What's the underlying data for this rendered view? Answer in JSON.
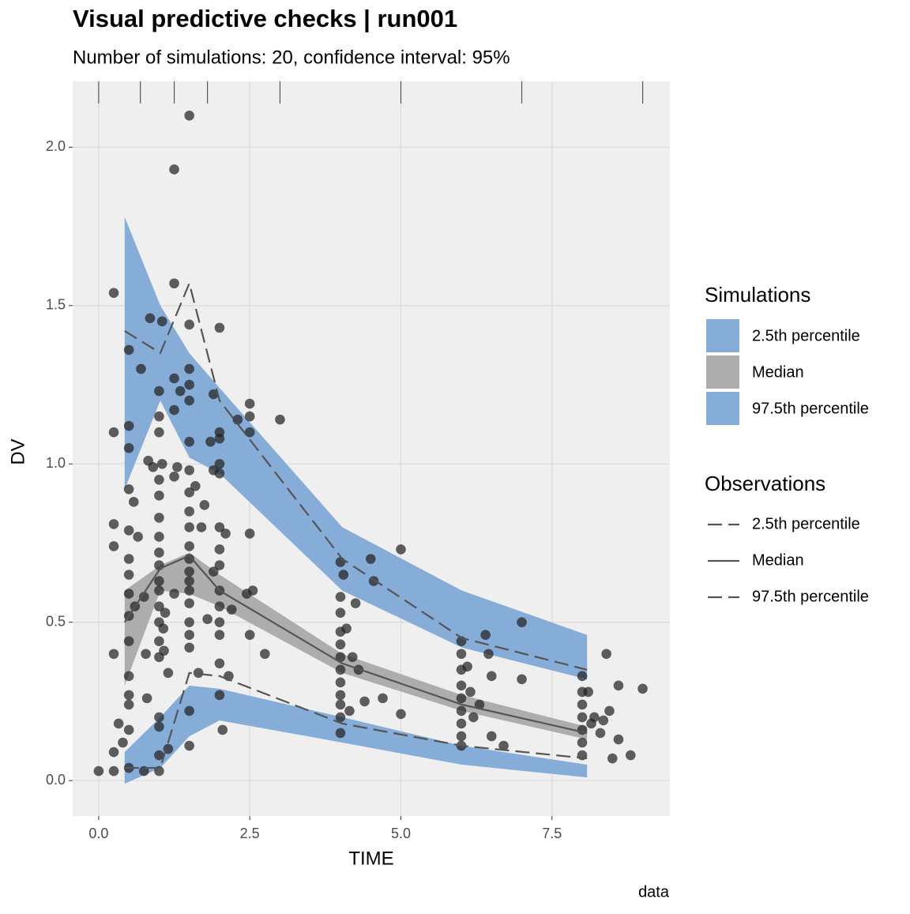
{
  "chart_data": {
    "type": "vpc",
    "title": "Visual predictive checks | run001",
    "subtitle": "Number of simulations: 20, confidence interval: 95%",
    "x_label": "TIME",
    "y_label": "DV",
    "caption": "data",
    "xlim": [
      -0.43,
      9.45
    ],
    "ylim": [
      -0.112,
      2.208
    ],
    "xticks": [
      {
        "value": 0,
        "label": "0.0"
      },
      2.5,
      {
        "value": 5,
        "label": "5.0"
      },
      7.5
    ],
    "yticks": [
      {
        "value": 0,
        "label": "0.0"
      },
      0.5,
      {
        "value": 1,
        "label": "1.0"
      },
      1.5,
      {
        "value": 2,
        "label": "2.0"
      }
    ],
    "grid": true,
    "bin_edges": [
      0,
      0.69,
      1.25,
      1.8,
      3.0,
      5.0,
      7.0,
      9.0
    ],
    "bin_mid": [
      0.43,
      1.02,
      1.5,
      2.0,
      4.03,
      6.01,
      8.08
    ],
    "simulations_title": "Simulations",
    "simulations": [
      {
        "name": "2.5th percentile",
        "color": "#86acd8",
        "lower": [
          -0.01,
          0.04,
          0.14,
          0.19,
          0.12,
          0.05,
          0.01
        ],
        "upper": [
          0.09,
          0.2,
          0.3,
          0.29,
          0.2,
          0.11,
          0.05
        ]
      },
      {
        "name": "Median",
        "color": "#adadad",
        "lower": [
          0.3,
          0.6,
          0.59,
          0.55,
          0.34,
          0.22,
          0.13
        ],
        "upper": [
          0.6,
          0.68,
          0.72,
          0.65,
          0.4,
          0.27,
          0.17
        ]
      },
      {
        "name": "97.5th percentile",
        "color": "#86acd8",
        "lower": [
          0.92,
          1.2,
          1.02,
          0.97,
          0.6,
          0.42,
          0.32
        ],
        "upper": [
          1.78,
          1.5,
          1.35,
          1.24,
          0.8,
          0.6,
          0.46
        ]
      }
    ],
    "observations_title": "Observations",
    "observations": [
      {
        "name": "2.5th percentile",
        "dash": true,
        "values": [
          0.04,
          0.04,
          0.34,
          0.33,
          0.18,
          0.11,
          0.07
        ]
      },
      {
        "name": "Median",
        "dash": false,
        "values": [
          0.5,
          0.67,
          0.71,
          0.6,
          0.37,
          0.24,
          0.15
        ]
      },
      {
        "name": "97.5th percentile",
        "dash": true,
        "values": [
          1.42,
          1.35,
          1.57,
          1.2,
          0.7,
          0.45,
          0.35
        ]
      }
    ],
    "line_color": "#555555",
    "point_color": "#222222",
    "points": {
      "x": [
        0,
        0.25,
        0.25,
        0.25,
        0.25,
        0.25,
        0.25,
        0.25,
        0.33,
        0.4,
        0.5,
        0.5,
        0.5,
        0.5,
        0.5,
        0.5,
        0.5,
        0.5,
        0.5,
        0.5,
        0.5,
        0.5,
        0.5,
        0.5,
        0.5,
        0.58,
        0.6,
        0.65,
        0.7,
        0.75,
        0.78,
        0.8,
        0.82,
        0.85,
        0.9,
        0.75,
        1,
        1,
        1,
        1,
        1,
        1,
        1,
        1,
        1,
        1,
        1,
        1,
        1,
        1,
        1,
        1,
        1,
        1,
        1,
        1.05,
        1.05,
        1.07,
        1.08,
        1.1,
        1.15,
        1.15,
        1.25,
        1.25,
        1.25,
        1.25,
        1.25,
        1.25,
        1.3,
        1.35,
        1.5,
        1.5,
        1.5,
        1.5,
        1.5,
        1.5,
        1.5,
        1.5,
        1.5,
        1.5,
        1.5,
        1.5,
        1.5,
        1.5,
        1.5,
        1.5,
        1.5,
        1.5,
        1.5,
        1.5,
        1.5,
        1.6,
        1.65,
        1.7,
        1.75,
        1.8,
        1.85,
        1.9,
        1.9,
        1.9,
        2,
        2,
        2,
        2,
        2,
        2,
        2,
        2,
        2,
        2,
        2,
        2,
        2,
        2,
        2.05,
        2.1,
        2.15,
        2.2,
        2.3,
        2.45,
        2.5,
        2.5,
        2.5,
        2.5,
        2.5,
        2.55,
        2.75,
        3.0,
        4,
        4,
        4,
        4,
        4,
        4,
        4,
        4,
        4,
        4,
        4,
        4,
        4.05,
        4.1,
        4.15,
        4.2,
        4.25,
        4.3,
        4.4,
        4.5,
        4.55,
        4.7,
        5.0,
        5.0,
        6,
        6,
        6,
        6,
        6,
        6,
        6,
        6,
        6,
        6.1,
        6.15,
        6.2,
        6.3,
        6.4,
        6.45,
        6.5,
        6.5,
        6.7,
        7.0,
        7.0,
        8,
        8,
        8,
        8,
        8,
        8,
        8,
        8.1,
        8.15,
        8.2,
        8.3,
        8.35,
        8.4,
        8.45,
        8.5,
        8.6,
        8.6,
        8.8,
        9.0
      ],
      "y": [
        0.03,
        1.54,
        1.1,
        0.81,
        0.74,
        0.4,
        0.09,
        0.03,
        0.18,
        0.12,
        1.36,
        1.12,
        1.05,
        0.92,
        0.79,
        0.7,
        0.65,
        0.59,
        0.52,
        0.44,
        0.33,
        0.27,
        0.24,
        0.16,
        0.04,
        0.88,
        0.55,
        0.77,
        1.3,
        0.58,
        0.4,
        0.26,
        1.01,
        1.46,
        0.99,
        0.03,
        1.23,
        1.15,
        1.1,
        0.95,
        0.9,
        0.83,
        0.77,
        0.72,
        0.68,
        0.63,
        0.6,
        0.55,
        0.5,
        0.44,
        0.39,
        0.2,
        0.17,
        0.08,
        0.03,
        1.45,
        1.0,
        0.48,
        0.41,
        0.53,
        0.34,
        0.1,
        1.93,
        1.57,
        1.27,
        1.17,
        0.96,
        0.59,
        0.99,
        1.23,
        2.1,
        1.44,
        1.3,
        1.25,
        1.2,
        1.07,
        0.98,
        0.91,
        0.85,
        0.8,
        0.74,
        0.7,
        0.66,
        0.63,
        0.6,
        0.56,
        0.5,
        0.46,
        0.42,
        0.22,
        0.11,
        0.93,
        0.34,
        0.8,
        0.87,
        0.51,
        1.07,
        1.22,
        0.98,
        0.66,
        1.43,
        1.1,
        1.08,
        1.0,
        0.97,
        0.8,
        0.73,
        0.68,
        0.6,
        0.55,
        0.5,
        0.46,
        0.37,
        0.27,
        0.16,
        0.78,
        0.33,
        0.54,
        1.14,
        0.59,
        1.19,
        1.15,
        1.1,
        0.78,
        0.46,
        0.6,
        0.4,
        1.14,
        0.69,
        0.58,
        0.53,
        0.47,
        0.43,
        0.39,
        0.35,
        0.31,
        0.27,
        0.24,
        0.2,
        0.15,
        0.65,
        0.48,
        0.22,
        0.39,
        0.56,
        0.35,
        0.25,
        0.7,
        0.63,
        0.26,
        0.73,
        0.21,
        0.44,
        0.4,
        0.35,
        0.3,
        0.26,
        0.22,
        0.18,
        0.14,
        0.11,
        0.36,
        0.28,
        0.2,
        0.24,
        0.46,
        0.4,
        0.33,
        0.14,
        0.11,
        0.5,
        0.32,
        0.33,
        0.28,
        0.24,
        0.2,
        0.16,
        0.12,
        0.08,
        0.28,
        0.18,
        0.2,
        0.15,
        0.19,
        0.4,
        0.22,
        0.07,
        0.3,
        0.13,
        0.08,
        0.29
      ]
    }
  }
}
